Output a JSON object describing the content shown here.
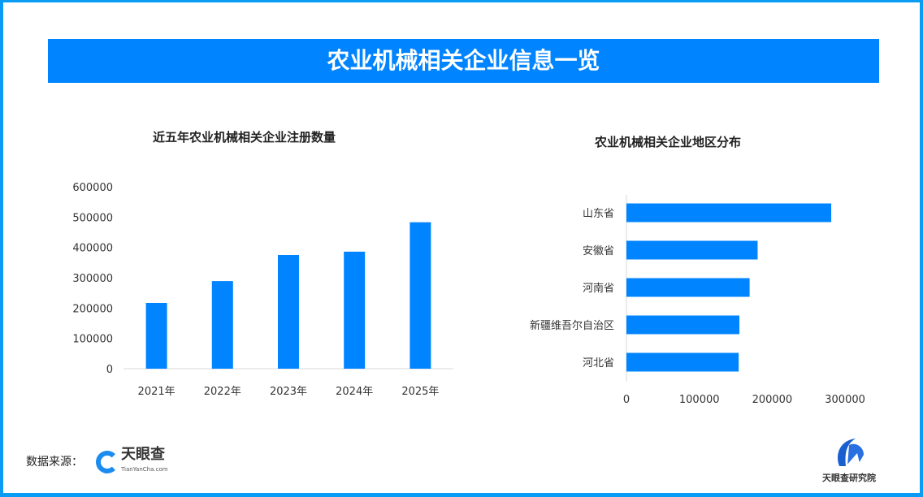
{
  "banner_title": "农业机械相关企业信息一览",
  "chart_data": [
    {
      "type": "bar",
      "title": "近五年农业机械相关企业注册数量",
      "categories": [
        "2021年",
        "2022年",
        "2023年",
        "2024年",
        "2025年"
      ],
      "values": [
        217000,
        289000,
        375000,
        386000,
        483000
      ],
      "ylim": [
        0,
        600000
      ],
      "yticks": [
        "0",
        "100000",
        "200000",
        "300000",
        "400000",
        "500000",
        "600000"
      ],
      "color": "#0084ff",
      "grid": false
    },
    {
      "type": "bar",
      "orientation": "horizontal",
      "title": "农业机械相关企业地区分布",
      "categories": [
        "山东省",
        "安徽省",
        "河南省",
        "新疆维吾尔自治区",
        "河北省"
      ],
      "values": [
        281000,
        180000,
        169000,
        155000,
        154000
      ],
      "xlim": [
        0,
        330000
      ],
      "xticks": [
        "0",
        "100000",
        "200000",
        "300000"
      ],
      "color": "#0084ff",
      "grid": false
    }
  ],
  "footer": {
    "source_label": "数据来源：",
    "source_logo": "天眼查",
    "source_logo_sub": "TianYanCha.com",
    "institute_logo": "天眼查研究院"
  }
}
